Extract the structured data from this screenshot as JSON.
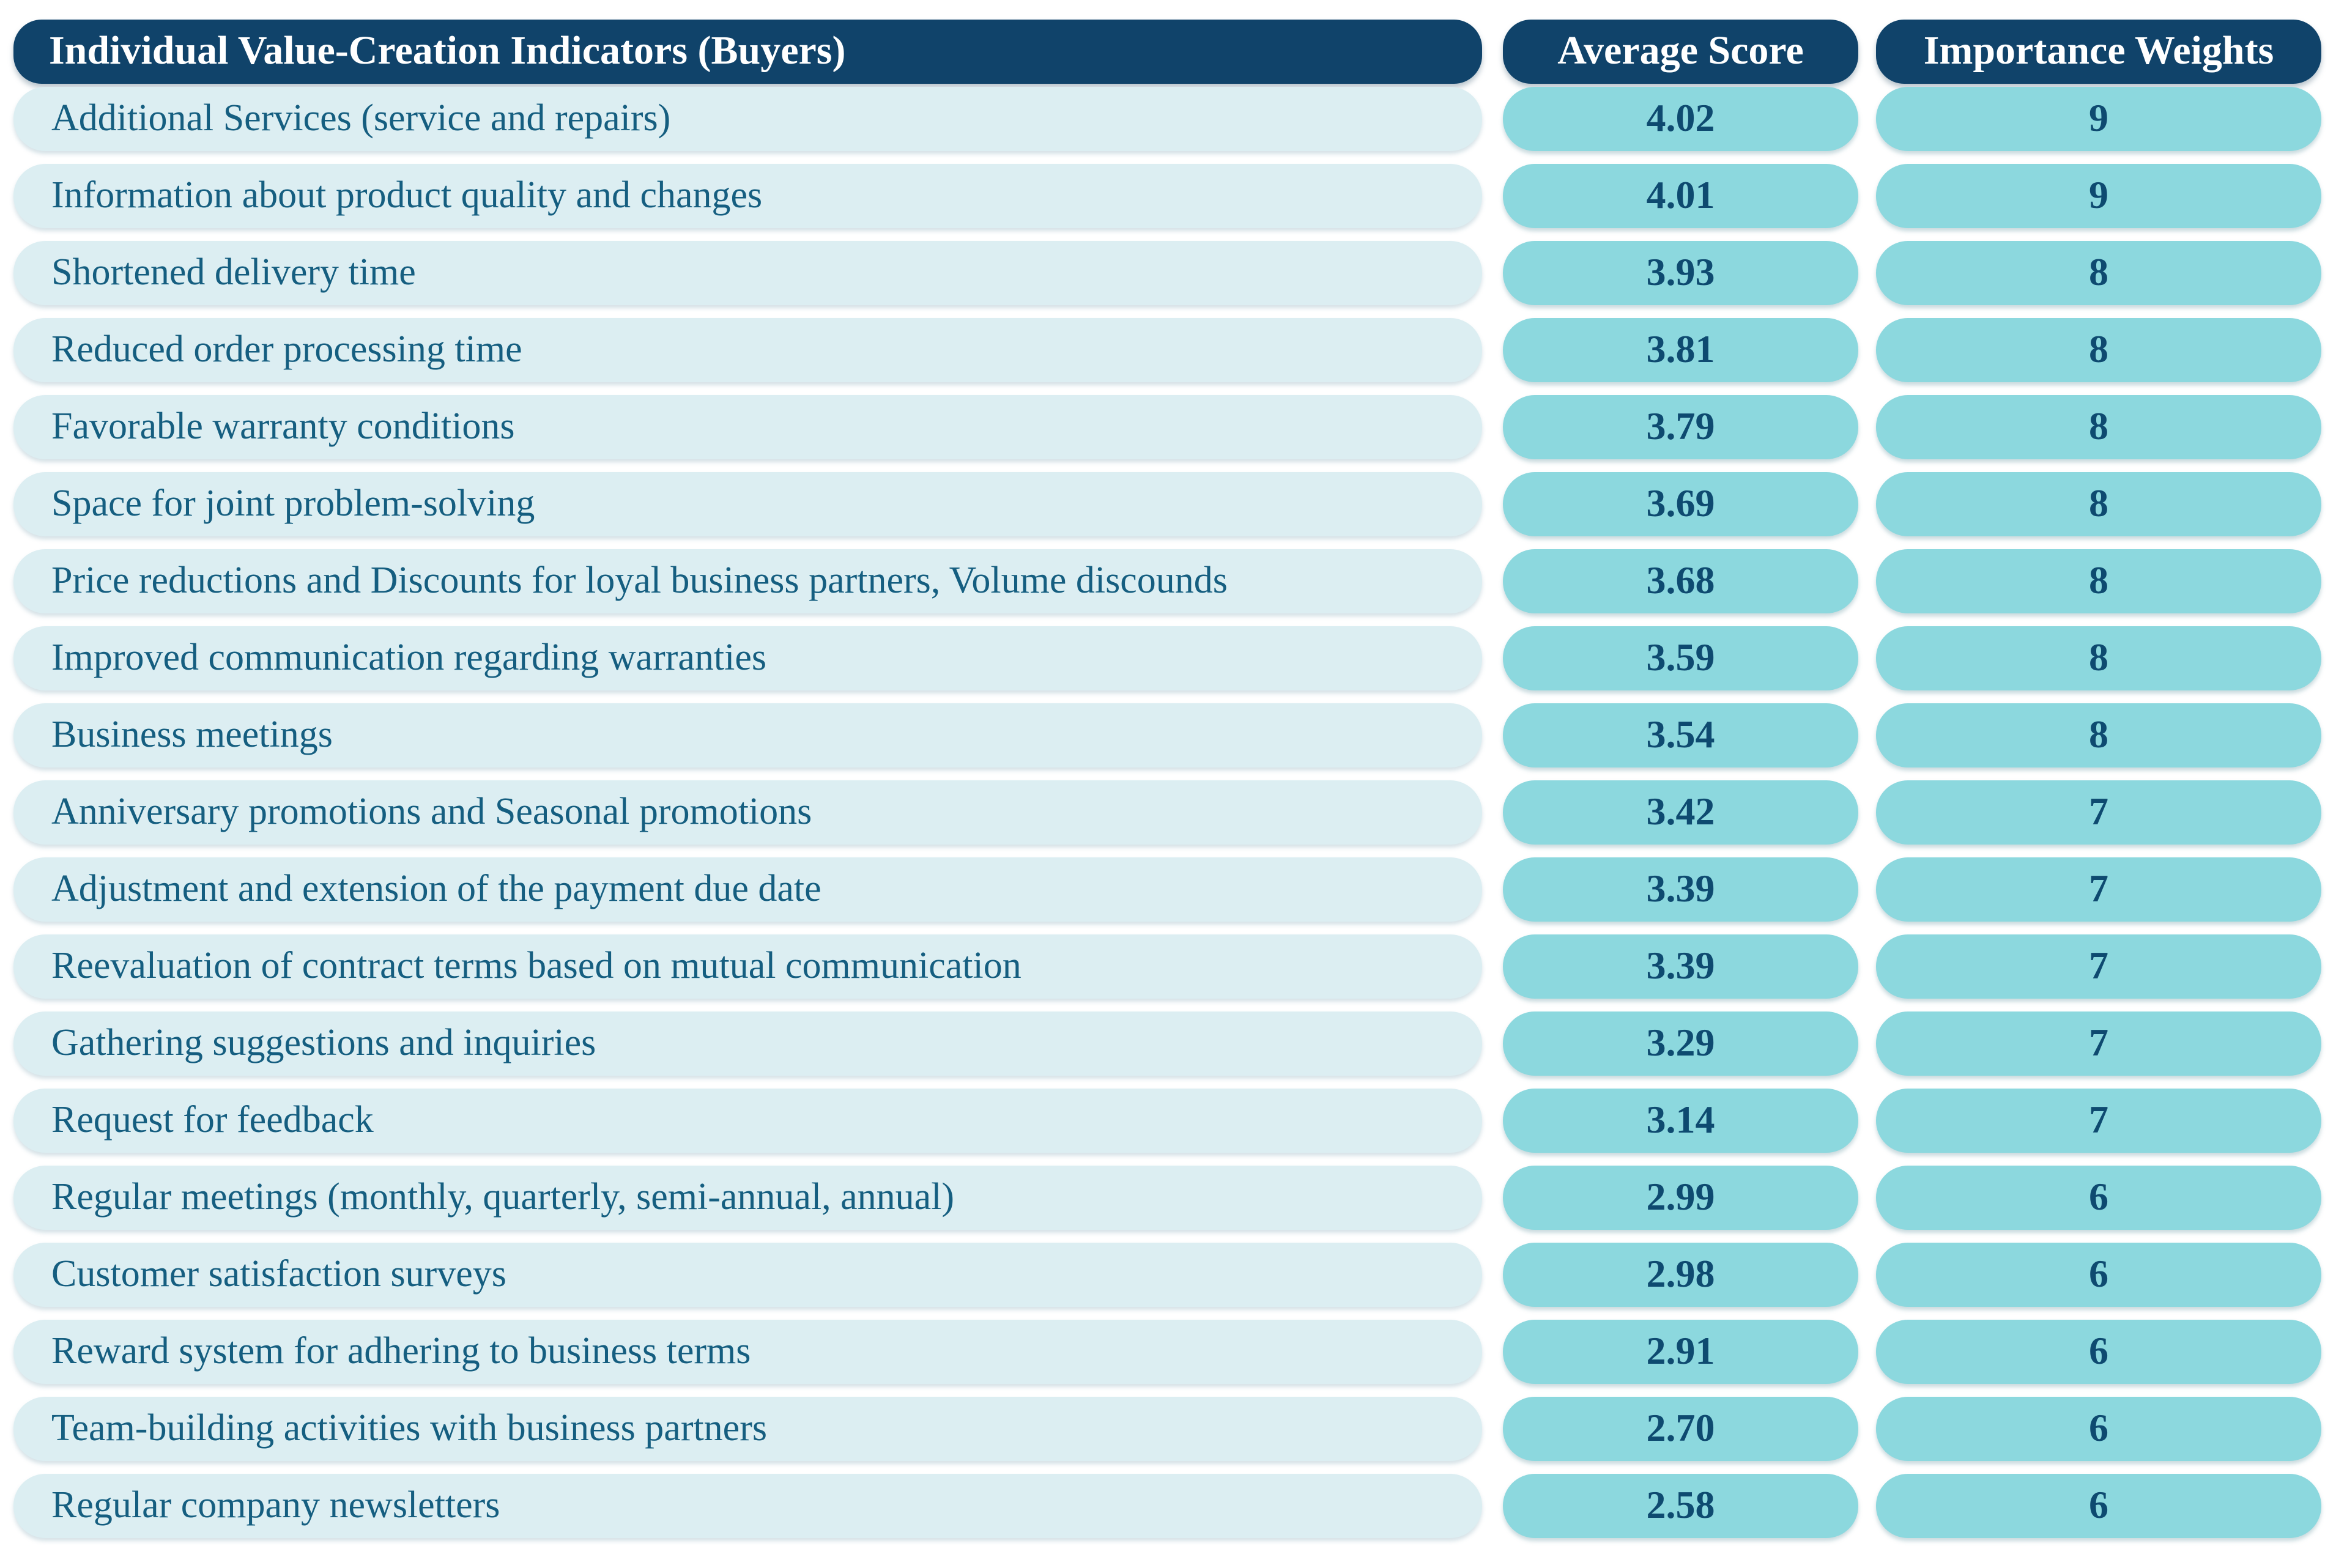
{
  "table": {
    "columns": [
      "Individual Value-Creation Indicators (Buyers)",
      "Average Score",
      "Importance Weights"
    ],
    "rows": [
      {
        "indicator": "Additional Services (service and repairs)",
        "average_score": "4.02",
        "importance_weight": "9"
      },
      {
        "indicator": "Information about product quality and changes",
        "average_score": "4.01",
        "importance_weight": "9"
      },
      {
        "indicator": "Shortened delivery time",
        "average_score": "3.93",
        "importance_weight": "8"
      },
      {
        "indicator": "Reduced order processing time",
        "average_score": "3.81",
        "importance_weight": "8"
      },
      {
        "indicator": "Favorable warranty conditions",
        "average_score": "3.79",
        "importance_weight": "8"
      },
      {
        "indicator": "Space for joint problem-solving",
        "average_score": "3.69",
        "importance_weight": "8"
      },
      {
        "indicator": "Price reductions and Discounts for loyal business partners, Volume discounds",
        "average_score": "3.68",
        "importance_weight": "8"
      },
      {
        "indicator": "Improved communication regarding warranties",
        "average_score": "3.59",
        "importance_weight": "8"
      },
      {
        "indicator": "Business meetings",
        "average_score": "3.54",
        "importance_weight": "8"
      },
      {
        "indicator": "Anniversary promotions and Seasonal promotions",
        "average_score": "3.42",
        "importance_weight": "7"
      },
      {
        "indicator": "Adjustment and extension of the payment due date",
        "average_score": "3.39",
        "importance_weight": "7"
      },
      {
        "indicator": "Reevaluation of contract terms based on mutual communication",
        "average_score": "3.39",
        "importance_weight": "7"
      },
      {
        "indicator": "Gathering suggestions and inquiries",
        "average_score": "3.29",
        "importance_weight": "7"
      },
      {
        "indicator": "Request for feedback",
        "average_score": "3.14",
        "importance_weight": "7"
      },
      {
        "indicator": "Regular meetings (monthly, quarterly, semi-annual, annual)",
        "average_score": "2.99",
        "importance_weight": "6"
      },
      {
        "indicator": "Customer satisfaction surveys",
        "average_score": "2.98",
        "importance_weight": "6"
      },
      {
        "indicator": "Reward system for adhering to business terms",
        "average_score": "2.91",
        "importance_weight": "6"
      },
      {
        "indicator": "Team-building activities with business partners",
        "average_score": "2.70",
        "importance_weight": "6"
      },
      {
        "indicator": "Regular company newsletters",
        "average_score": "2.58",
        "importance_weight": "6"
      }
    ]
  },
  "colors": {
    "header_bg": "#10436a",
    "header_text": "#ffffff",
    "row_bg": "#dceef2",
    "row_text": "#155e80",
    "value_bg": "#8cd8de",
    "value_text": "#0e4a70",
    "page_bg": "#ffffff"
  },
  "chart_data": {
    "type": "table",
    "title": "Individual Value-Creation Indicators (Buyers)",
    "columns": [
      "Individual Value-Creation Indicators (Buyers)",
      "Average Score",
      "Importance Weights"
    ],
    "rows": [
      [
        "Additional Services (service and repairs)",
        4.02,
        9
      ],
      [
        "Information about product quality and changes",
        4.01,
        9
      ],
      [
        "Shortened delivery time",
        3.93,
        8
      ],
      [
        "Reduced order processing time",
        3.81,
        8
      ],
      [
        "Favorable warranty conditions",
        3.79,
        8
      ],
      [
        "Space for joint problem-solving",
        3.69,
        8
      ],
      [
        "Price reductions and Discounts for loyal business partners, Volume discounds",
        3.68,
        8
      ],
      [
        "Improved communication regarding warranties",
        3.59,
        8
      ],
      [
        "Business meetings",
        3.54,
        8
      ],
      [
        "Anniversary promotions and Seasonal promotions",
        3.42,
        7
      ],
      [
        "Adjustment and extension of the payment due date",
        3.39,
        7
      ],
      [
        "Reevaluation of contract terms based on mutual communication",
        3.39,
        7
      ],
      [
        "Gathering suggestions and inquiries",
        3.29,
        7
      ],
      [
        "Request for feedback",
        3.14,
        7
      ],
      [
        "Regular meetings (monthly, quarterly, semi-annual, annual)",
        2.99,
        6
      ],
      [
        "Customer satisfaction surveys",
        2.98,
        6
      ],
      [
        "Reward system for adhering to business terms",
        2.91,
        6
      ],
      [
        "Team-building activities with business partners",
        2.7,
        6
      ],
      [
        "Regular company newsletters",
        2.58,
        6
      ]
    ]
  }
}
